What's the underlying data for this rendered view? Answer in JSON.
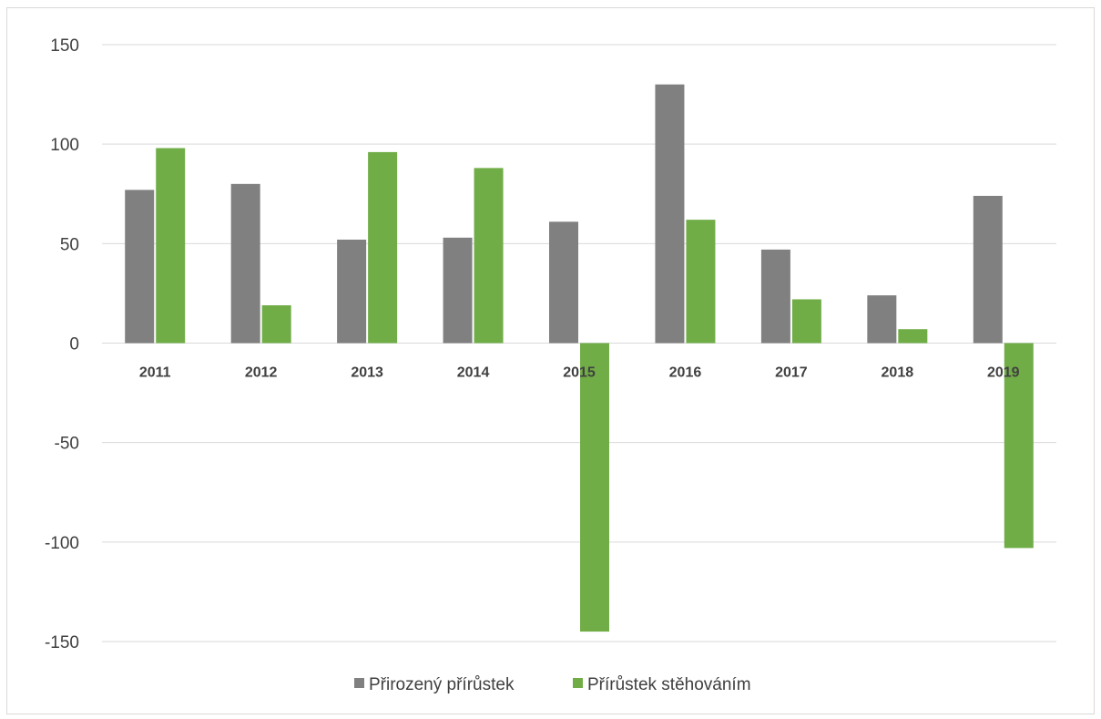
{
  "chart_data": {
    "type": "bar",
    "categories": [
      "2011",
      "2012",
      "2013",
      "2014",
      "2015",
      "2016",
      "2017",
      "2018",
      "2019"
    ],
    "series": [
      {
        "name": "Přirozený přírůstek",
        "color": "#808080",
        "values": [
          77,
          80,
          52,
          53,
          61,
          130,
          47,
          24,
          74
        ]
      },
      {
        "name": "Přírůstek stěhováním",
        "color": "#70ad47",
        "values": [
          98,
          19,
          96,
          88,
          -145,
          62,
          22,
          7,
          -103
        ]
      }
    ],
    "ylim": [
      -150,
      150
    ],
    "yticks": [
      150,
      100,
      50,
      0,
      -50,
      -100,
      -150
    ],
    "ytick_labels": [
      "150",
      "100",
      "50",
      "0",
      "-50",
      "-100",
      "-150"
    ],
    "grid": true,
    "legend_position": "bottom",
    "title": "",
    "xlabel": "",
    "ylabel": ""
  }
}
